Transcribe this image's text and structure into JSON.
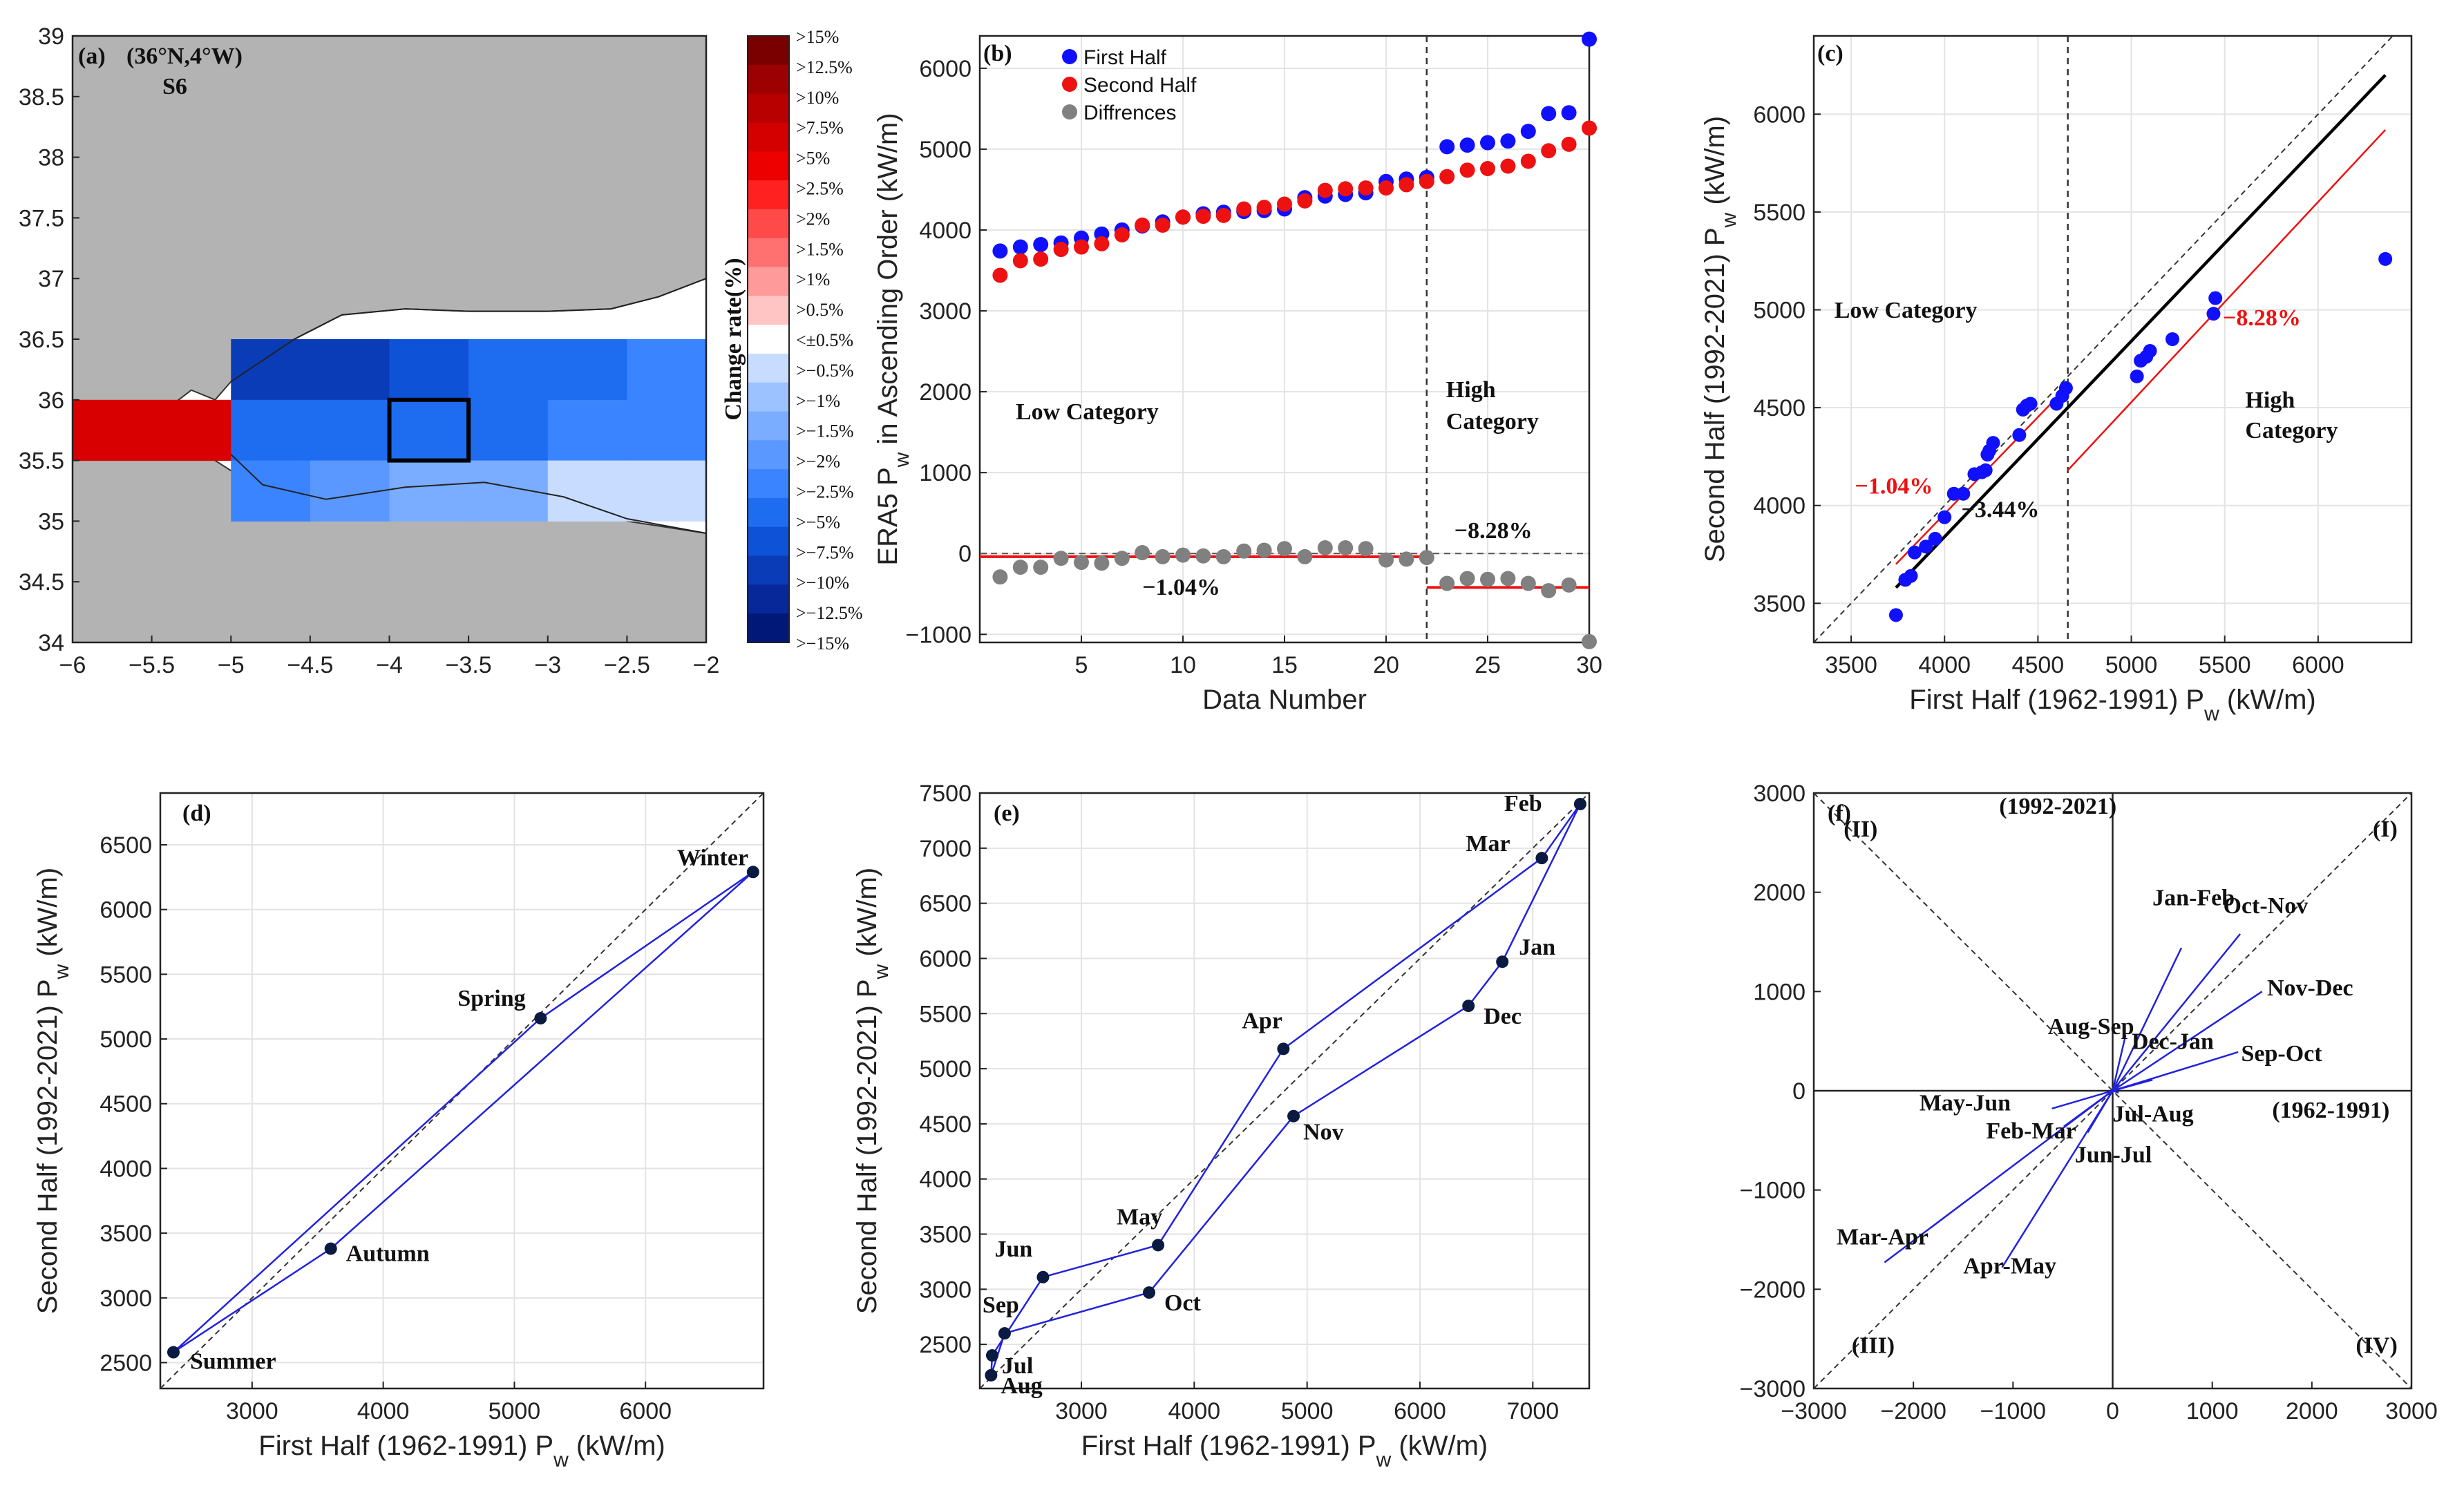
{
  "colors": {
    "blue_series": "#1010ff",
    "red_series": "#ee1111",
    "gray_series": "#808080",
    "line_blue": "#2222dd",
    "land": "#b3b3b3",
    "reg_black": "#000000",
    "reg_red": "#ee1111"
  },
  "chart_data": [
    {
      "id": "a",
      "type": "heatmap",
      "panel_label": "(a)",
      "location": "(36°N,4°W)",
      "station": "S6",
      "xlim": [
        -6,
        -2
      ],
      "ylim": [
        34,
        39
      ],
      "xticks": [
        "−6",
        "−5.5",
        "−5",
        "−4.5",
        "−4",
        "−3.5",
        "−3",
        "−2.5",
        "−2"
      ],
      "yticks": [
        "34",
        "34.5",
        "35",
        "35.5",
        "36",
        "36.5",
        "37",
        "37.5",
        "38",
        "38.5",
        "39"
      ],
      "colorbar_label": "Change rate(%)",
      "colorbar_labels": [
        ">15%",
        ">12.5%",
        ">10%",
        ">7.5%",
        ">5%",
        ">2.5%",
        ">2%",
        ">1.5%",
        ">1%",
        ">0.5%",
        "<±0.5%",
        ">−0.5%",
        ">−1%",
        ">−1.5%",
        ">−2%",
        ">−2.5%",
        ">−5%",
        ">−7.5%",
        ">−10%",
        ">−12.5%",
        ">−15%"
      ],
      "colorbar_colors": [
        "#7a0000",
        "#9c0000",
        "#b80000",
        "#d40000",
        "#ec0000",
        "#ff2020",
        "#ff4a4a",
        "#ff7070",
        "#ff9a9a",
        "#ffc4c4",
        "#ffffff",
        "#c8dcff",
        "#9cc2ff",
        "#7aacff",
        "#5a98ff",
        "#3a84ff",
        "#1e6cf0",
        "#0e52d8",
        "#0a3cb8",
        "#062898",
        "#021878"
      ],
      "cells": [
        {
          "lon": -6.0,
          "lat": 35.75,
          "value": "positive >10%"
        },
        {
          "lon": -5.5,
          "lat": 35.75,
          "value": "positive >10%"
        },
        {
          "lon": -5.0,
          "lat": 36.25,
          "value": ">−10%"
        },
        {
          "lon": -4.5,
          "lat": 36.25,
          "value": ">−10%"
        },
        {
          "lon": -4.0,
          "lat": 36.25,
          "value": ">−7.5%"
        },
        {
          "lon": -3.5,
          "lat": 36.25,
          "value": ">−5%"
        },
        {
          "lon": -3.0,
          "lat": 36.25,
          "value": ">−5%"
        },
        {
          "lon": -2.5,
          "lat": 36.25,
          "value": ">−2.5%"
        },
        {
          "lon": -5.0,
          "lat": 35.75,
          "value": ">−5%"
        },
        {
          "lon": -4.5,
          "lat": 35.75,
          "value": ">−5%"
        },
        {
          "lon": -4.0,
          "lat": 35.75,
          "value": ">−5%"
        },
        {
          "lon": -3.5,
          "lat": 35.75,
          "value": ">−5%"
        },
        {
          "lon": -3.0,
          "lat": 35.75,
          "value": ">−2.5%"
        },
        {
          "lon": -2.5,
          "lat": 35.75,
          "value": ">−2.5%"
        },
        {
          "lon": -5.0,
          "lat": 35.25,
          "value": ">−2.5%"
        },
        {
          "lon": -4.5,
          "lat": 35.25,
          "value": ">−2%"
        },
        {
          "lon": -4.0,
          "lat": 35.25,
          "value": ">−1.5%"
        },
        {
          "lon": -3.5,
          "lat": 35.25,
          "value": ">−1.5%"
        },
        {
          "lon": -3.0,
          "lat": 35.25,
          "value": ">−0.5%"
        },
        {
          "lon": -2.5,
          "lat": 35.25,
          "value": ">−0.5%"
        }
      ],
      "highlight_box": {
        "lon": [
          -4,
          -3.5
        ],
        "lat": [
          35.5,
          36
        ]
      }
    },
    {
      "id": "b",
      "type": "scatter",
      "panel_label": "(b)",
      "xlabel": "Data Number",
      "ylabel": "ERA5 P",
      "ylabel_sub": "w",
      "ylabel_rest": " in Ascending Order (kW/m)",
      "xlim": [
        0,
        30
      ],
      "ylim": [
        -1100,
        6400
      ],
      "xticks": [
        "5",
        "10",
        "15",
        "20",
        "25",
        "30"
      ],
      "yticks": [
        "−1000",
        "0",
        "1000",
        "2000",
        "3000",
        "4000",
        "5000",
        "6000"
      ],
      "legend": [
        "First Half",
        "Second Half",
        "Diffrences"
      ],
      "series": [
        {
          "name": "First Half",
          "x": [
            1,
            2,
            3,
            4,
            5,
            6,
            7,
            8,
            9,
            10,
            11,
            12,
            13,
            14,
            15,
            16,
            17,
            18,
            19,
            20,
            21,
            22,
            23,
            24,
            25,
            26,
            27,
            28,
            29,
            30
          ],
          "values": [
            3740,
            3790,
            3820,
            3840,
            3900,
            3950,
            4000,
            4050,
            4100,
            4160,
            4200,
            4220,
            4230,
            4240,
            4260,
            4400,
            4420,
            4440,
            4460,
            4600,
            4630,
            4650,
            5030,
            5050,
            5080,
            5100,
            5220,
            5440,
            5450,
            6360
          ]
        },
        {
          "name": "Second Half",
          "x": [
            1,
            2,
            3,
            4,
            5,
            6,
            7,
            8,
            9,
            10,
            11,
            12,
            13,
            14,
            15,
            16,
            17,
            18,
            19,
            20,
            21,
            22,
            23,
            24,
            25,
            26,
            27,
            28,
            29,
            30
          ],
          "values": [
            3440,
            3620,
            3640,
            3760,
            3790,
            3830,
            3940,
            4060,
            4060,
            4160,
            4170,
            4180,
            4260,
            4280,
            4320,
            4360,
            4490,
            4510,
            4520,
            4520,
            4560,
            4600,
            4660,
            4740,
            4760,
            4790,
            4850,
            4980,
            5060,
            5260
          ]
        },
        {
          "name": "Diffrences",
          "x": [
            1,
            2,
            3,
            4,
            5,
            6,
            7,
            8,
            9,
            10,
            11,
            12,
            13,
            14,
            15,
            16,
            17,
            18,
            19,
            20,
            21,
            22,
            23,
            24,
            25,
            26,
            27,
            28,
            29,
            30
          ],
          "values": [
            -290,
            -170,
            -170,
            -60,
            -110,
            -120,
            -60,
            10,
            -40,
            -20,
            -30,
            -40,
            30,
            40,
            60,
            -40,
            70,
            70,
            60,
            -80,
            -70,
            -50,
            -370,
            -310,
            -320,
            -310,
            -370,
            -460,
            -390,
            -1090
          ]
        }
      ],
      "divider_x": 22,
      "low_mean_line": -40,
      "high_mean_line": -420,
      "annotations": [
        "Low Category",
        "High",
        "Category",
        "−8.28%",
        "−1.04%"
      ]
    },
    {
      "id": "c",
      "type": "scatter",
      "panel_label": "(c)",
      "xlabel": "First Half (1962-1991) P",
      "xlabel_rest": " (kW/m)",
      "ylabel": "Second Half (1992-2021) P",
      "ylabel_rest": " (kW/m)",
      "sub": "w",
      "xlim": [
        3300,
        6500
      ],
      "ylim": [
        3300,
        6400
      ],
      "xticks": [
        "3500",
        "4000",
        "4500",
        "5000",
        "5500",
        "6000"
      ],
      "yticks": [
        "3500",
        "4000",
        "4500",
        "5000",
        "5500",
        "6000"
      ],
      "points_x": [
        3740,
        3790,
        3820,
        3840,
        3900,
        3950,
        4000,
        4050,
        4100,
        4160,
        4200,
        4220,
        4230,
        4240,
        4260,
        4400,
        4420,
        4440,
        4460,
        4600,
        4630,
        4650,
        5030,
        5050,
        5080,
        5100,
        5220,
        5440,
        5450,
        6360
      ],
      "points_y": [
        3440,
        3620,
        3640,
        3760,
        3790,
        3830,
        3940,
        4060,
        4060,
        4160,
        4170,
        4180,
        4260,
        4280,
        4320,
        4360,
        4490,
        4510,
        4520,
        4520,
        4560,
        4600,
        4660,
        4740,
        4760,
        4790,
        4850,
        4980,
        5060,
        5260
      ],
      "divider_x": 4660,
      "fit_black": [
        [
          3740,
          3580
        ],
        [
          6360,
          6200
        ]
      ],
      "fit_red_low": [
        [
          3740,
          3700
        ],
        [
          4660,
          4610
        ]
      ],
      "fit_red_high": [
        [
          4660,
          4180
        ],
        [
          6360,
          5920
        ]
      ],
      "annotations": [
        "Low Category",
        "High",
        "Category",
        "−8.28%",
        "−1.04%",
        "−3.44%"
      ]
    },
    {
      "id": "d",
      "type": "line",
      "panel_label": "(d)",
      "xlabel": "First Half (1962-1991) P",
      "xlabel_rest": " (kW/m)",
      "ylabel": "Second Half (1992-2021) P",
      "ylabel_rest": " (kW/m)",
      "sub": "w",
      "xlim": [
        2300,
        6900
      ],
      "ylim": [
        2300,
        6900
      ],
      "xticks": [
        "3000",
        "4000",
        "5000",
        "6000"
      ],
      "yticks": [
        "2500",
        "3000",
        "3500",
        "4000",
        "4500",
        "5000",
        "5500",
        "6000",
        "6500"
      ],
      "seasons": [
        "Summer",
        "Autumn",
        "Winter",
        "Spring"
      ],
      "x": [
        2400,
        3600,
        6820,
        5200
      ],
      "y": [
        2580,
        3380,
        6290,
        5160
      ]
    },
    {
      "id": "e",
      "type": "line",
      "panel_label": "(e)",
      "xlabel": "First Half (1962-1991) P",
      "xlabel_rest": " (kW/m)",
      "ylabel": "Second Half (1992-2021) P",
      "ylabel_rest": " (kW/m)",
      "sub": "w",
      "xlim": [
        2100,
        7500
      ],
      "ylim": [
        2100,
        7500
      ],
      "xticks": [
        "3000",
        "4000",
        "5000",
        "6000",
        "7000"
      ],
      "yticks": [
        "2500",
        "3000",
        "3500",
        "4000",
        "4500",
        "5000",
        "5500",
        "6000",
        "6500",
        "7000",
        "7500"
      ],
      "months": [
        "Jan",
        "Feb",
        "Mar",
        "Apr",
        "May",
        "Jun",
        "Jul",
        "Aug",
        "Sep",
        "Oct",
        "Nov",
        "Dec"
      ],
      "x": [
        6730,
        7420,
        7080,
        4790,
        3680,
        2660,
        2210,
        2200,
        2320,
        3600,
        4880,
        6430
      ],
      "y": [
        5970,
        7400,
        6910,
        5180,
        3400,
        3110,
        2400,
        2220,
        2600,
        2970,
        4570,
        5570
      ]
    },
    {
      "id": "f",
      "type": "line",
      "panel_label": "(f)",
      "xlim": [
        -3000,
        3000
      ],
      "ylim": [
        -3000,
        3000
      ],
      "xticks": [
        "−3000",
        "−2000",
        "−1000",
        "0",
        "1000",
        "2000",
        "3000"
      ],
      "yticks": [
        "−3000",
        "−2000",
        "−1000",
        "0",
        "1000",
        "2000",
        "3000"
      ],
      "axis_labels": [
        "(1992-2021)",
        "(1962-1991)"
      ],
      "quadrants": [
        "(I)",
        "(II)",
        "(III)",
        "(IV)"
      ],
      "pairs": [
        "Jan-Feb",
        "Oct-Nov",
        "Nov-Dec",
        "Aug-Sep",
        "Dec-Jan",
        "Sep-Oct",
        "May-Jun",
        "Feb-Mar",
        "Jul-Aug",
        "Jun-Jul",
        "Mar-Apr",
        "Apr-May"
      ],
      "dx": [
        690,
        1280,
        1500,
        130,
        400,
        1260,
        -610,
        -490,
        60,
        -250,
        -2290,
        -1110
      ],
      "dy": [
        1440,
        1580,
        1000,
        560,
        110,
        390,
        -180,
        -360,
        -20,
        -420,
        -1730,
        -1780
      ]
    }
  ]
}
